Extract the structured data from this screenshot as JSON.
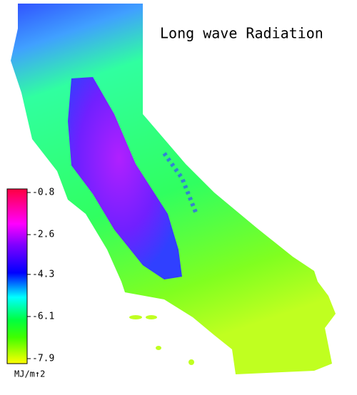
{
  "map": {
    "title": "Long wave Radiation",
    "colorbar": {
      "ticks": [
        -0.8,
        -2.6,
        -4.3,
        -6.1,
        -7.9
      ],
      "unit": "MJ/m↑2"
    }
  }
}
